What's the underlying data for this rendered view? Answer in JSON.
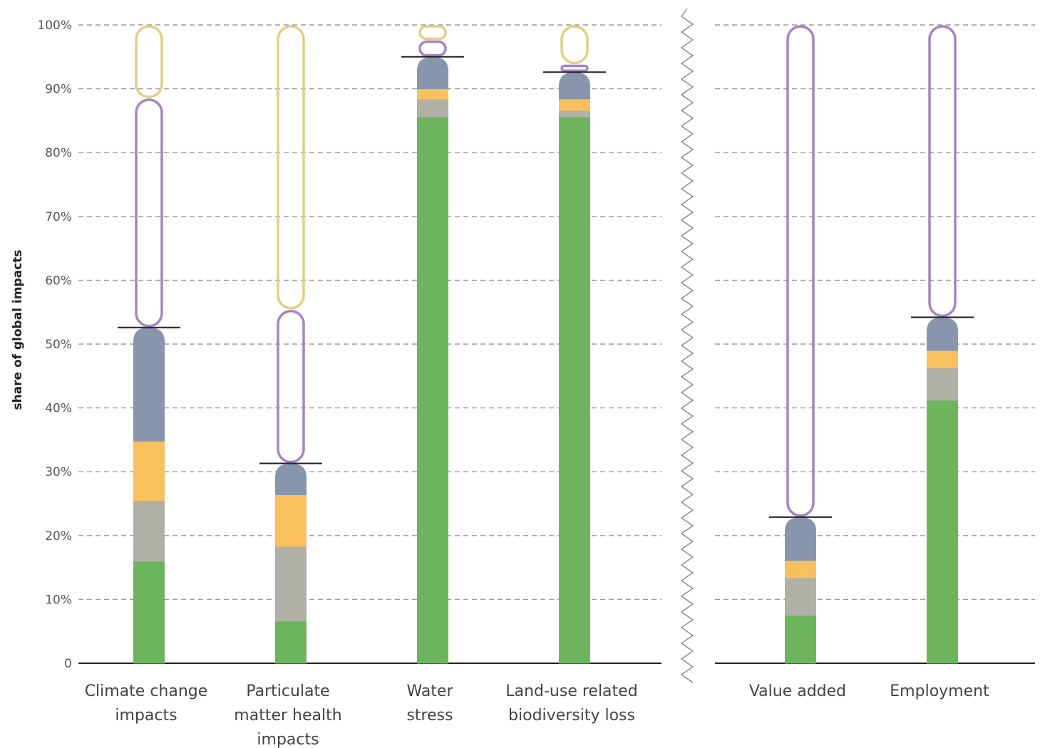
{
  "chart_data": {
    "type": "bar",
    "stacked": true,
    "ylabel": "share of global impacts",
    "ylim": [
      0,
      100
    ],
    "yticks": [
      "0",
      "10%",
      "20%",
      "30%",
      "40%",
      "50%",
      "60%",
      "70%",
      "80%",
      "90%",
      "100%"
    ],
    "grid": true,
    "panels": [
      {
        "categories": [
          "Climate change impacts",
          "Particulate matter health impacts",
          "Water stress",
          "Land-use related biodiversity loss"
        ]
      },
      {
        "categories": [
          "Value added",
          "Employment"
        ]
      }
    ],
    "colors": {
      "green": "#6db55c",
      "grey": "#b0b0a6",
      "orange": "#f8c15e",
      "blue_grey": "#8796ad",
      "purple_outline": "#a684c3",
      "yellow_outline": "#e1cf82"
    },
    "bars": [
      {
        "category": "Climate change impacts",
        "label_lines": [
          "Climate change",
          "impacts"
        ],
        "segments": [
          {
            "color": "green",
            "value": 16
          },
          {
            "color": "grey",
            "value": 9.5
          },
          {
            "color": "orange",
            "value": 9.3
          },
          {
            "color": "blue_grey",
            "value": 17.8
          }
        ],
        "marker": 52.6,
        "outline": [
          {
            "color": "purple_outline",
            "from": 52.6,
            "to": 88.5
          },
          {
            "color": "yellow_outline",
            "from": 88.5,
            "to": 100
          }
        ]
      },
      {
        "category": "Particulate matter health impacts",
        "label_lines": [
          "Particulate",
          "matter health",
          "impacts"
        ],
        "segments": [
          {
            "color": "green",
            "value": 6.6
          },
          {
            "color": "grey",
            "value": 11.7
          },
          {
            "color": "orange",
            "value": 8.1
          },
          {
            "color": "blue_grey",
            "value": 4.9
          }
        ],
        "marker": 31.3,
        "outline": [
          {
            "color": "purple_outline",
            "from": 31.3,
            "to": 55.4
          },
          {
            "color": "yellow_outline",
            "from": 55.4,
            "to": 100
          }
        ]
      },
      {
        "category": "Water stress",
        "label_lines": [
          "Water",
          "stress"
        ],
        "segments": [
          {
            "color": "green",
            "value": 85.6
          },
          {
            "color": "grey",
            "value": 2.8
          },
          {
            "color": "orange",
            "value": 1.6
          },
          {
            "color": "blue_grey",
            "value": 5
          }
        ],
        "marker": 95,
        "outline": [
          {
            "color": "purple_outline",
            "from": 95,
            "to": 97.6
          },
          {
            "color": "yellow_outline",
            "from": 97.6,
            "to": 100
          }
        ]
      },
      {
        "category": "Land-use related biodiversity loss",
        "label_lines": [
          "Land-use related",
          "biodiversity loss"
        ],
        "segments": [
          {
            "color": "green",
            "value": 85.6
          },
          {
            "color": "grey",
            "value": 1
          },
          {
            "color": "orange",
            "value": 1.8
          },
          {
            "color": "blue_grey",
            "value": 4.2
          }
        ],
        "marker": 92.6,
        "outline": [
          {
            "color": "purple_outline",
            "from": 92.6,
            "to": 93.8
          },
          {
            "color": "yellow_outline",
            "from": 93.8,
            "to": 100
          }
        ]
      },
      {
        "category": "Value added",
        "label_lines": [
          "Value added"
        ],
        "segments": [
          {
            "color": "green",
            "value": 7.5
          },
          {
            "color": "grey",
            "value": 5.9
          },
          {
            "color": "orange",
            "value": 2.7
          },
          {
            "color": "blue_grey",
            "value": 6.8
          }
        ],
        "marker": 22.9,
        "outline": [
          {
            "color": "purple_outline",
            "from": 22.9,
            "to": 100
          }
        ]
      },
      {
        "category": "Employment",
        "label_lines": [
          "Employment"
        ],
        "segments": [
          {
            "color": "green",
            "value": 41.2
          },
          {
            "color": "grey",
            "value": 5.1
          },
          {
            "color": "orange",
            "value": 2.7
          },
          {
            "color": "blue_grey",
            "value": 5.2
          }
        ],
        "marker": 54.2,
        "outline": [
          {
            "color": "purple_outline",
            "from": 54.2,
            "to": 100
          }
        ]
      }
    ]
  }
}
